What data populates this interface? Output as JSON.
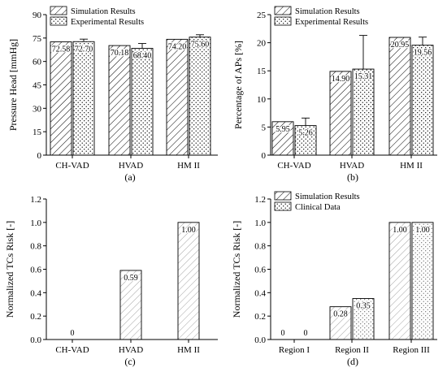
{
  "patterns": {
    "simulation": "hatch",
    "experimental": "dots",
    "clinical": "dots"
  },
  "chart_data": [
    {
      "type": "bar",
      "panel_label": "(a)",
      "ylabel": "Pressure Head [mmHg]",
      "xlabel": "",
      "ylim": [
        0,
        90
      ],
      "yticks": [
        0,
        15,
        30,
        45,
        60,
        75,
        90
      ],
      "categories": [
        "CH-VAD",
        "HVAD",
        "HM II"
      ],
      "legend_position": "top-left",
      "series": [
        {
          "name": "Simulation Results",
          "pattern": "hatch",
          "values": [
            72.58,
            70.18,
            74.2
          ],
          "labels": [
            "72.58",
            "70.18",
            "74.20"
          ]
        },
        {
          "name": "Experimental Results",
          "pattern": "dots",
          "values": [
            72.7,
            68.4,
            75.6
          ],
          "labels": [
            "72.70",
            "68.40",
            "75.60"
          ],
          "error_upper": [
            74.3,
            71.5,
            77.1
          ]
        }
      ]
    },
    {
      "type": "bar",
      "panel_label": "(b)",
      "ylabel": "Percentage of APs [%]",
      "xlabel": "",
      "ylim": [
        0,
        25
      ],
      "yticks": [
        0,
        5,
        10,
        15,
        20,
        25
      ],
      "categories": [
        "CH-VAD",
        "HVAD",
        "HM II"
      ],
      "legend_position": "top-left",
      "series": [
        {
          "name": "Simulation Results",
          "pattern": "hatch",
          "values": [
            5.95,
            14.9,
            20.95
          ],
          "labels": [
            "5.95",
            "14.90",
            "20.95"
          ]
        },
        {
          "name": "Experimental Results",
          "pattern": "dots",
          "values": [
            5.26,
            15.31,
            19.56
          ],
          "labels": [
            "5.26",
            "15.31",
            "19.56"
          ],
          "error_upper": [
            6.6,
            21.3,
            21.0
          ]
        }
      ]
    },
    {
      "type": "bar",
      "panel_label": "(c)",
      "ylabel": "Normalized TCs Risk [-]",
      "xlabel": "",
      "ylim": [
        0,
        1.2
      ],
      "yticks": [
        0.0,
        0.2,
        0.4,
        0.6,
        0.8,
        1.0,
        1.2
      ],
      "categories": [
        "CH-VAD",
        "HVAD",
        "HM II"
      ],
      "series": [
        {
          "pattern": "hatch",
          "values": [
            0,
            0.59,
            1.0
          ],
          "labels": [
            "0",
            "0.59",
            "1.00"
          ]
        }
      ]
    },
    {
      "type": "bar",
      "panel_label": "(d)",
      "ylabel": "Normalized TCs Risk [-]",
      "xlabel": "",
      "ylim": [
        0,
        1.2
      ],
      "yticks": [
        0.0,
        0.2,
        0.4,
        0.6,
        0.8,
        1.0,
        1.2
      ],
      "categories": [
        "Region I",
        "Region II",
        "Region III"
      ],
      "legend_position": "top-left",
      "series": [
        {
          "name": "Simulation Results",
          "pattern": "hatch",
          "values": [
            0,
            0.28,
            1.0
          ],
          "labels": [
            "0",
            "0.28",
            "1.00"
          ]
        },
        {
          "name": "Clinical Data",
          "pattern": "dots",
          "values": [
            0,
            0.35,
            1.0
          ],
          "labels": [
            "0",
            "0.35",
            "1.00"
          ]
        }
      ]
    }
  ]
}
